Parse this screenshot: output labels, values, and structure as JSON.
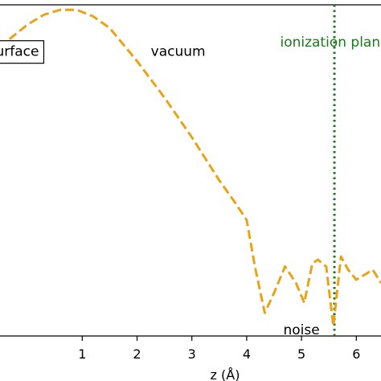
{
  "chart_data": {
    "type": "line",
    "xlabel": "z (Å)",
    "ylabel": "",
    "title": "",
    "xlim": [
      -0.5,
      6.45
    ],
    "ylim": [
      0.0,
      1.0
    ],
    "x_ticks": [
      1,
      2,
      3,
      4,
      5,
      6
    ],
    "x_tick_labels": [
      "1",
      "2",
      "3",
      "4",
      "5",
      "6"
    ],
    "grid": false,
    "series": [
      {
        "style": "dashed",
        "color": "#e8a317",
        "x": [
          -0.5,
          -0.3,
          0.0,
          0.3,
          0.6,
          0.9,
          1.2,
          1.5,
          2.0,
          2.5,
          3.0,
          3.5,
          3.8,
          4.0,
          4.15,
          4.33,
          4.5,
          4.7,
          4.9,
          5.05,
          5.2,
          5.3,
          5.45,
          5.58,
          5.72,
          5.85,
          6.0,
          6.3,
          6.45
        ],
        "y": [
          0.87,
          0.9,
          0.94,
          0.97,
          0.985,
          0.985,
          0.965,
          0.93,
          0.83,
          0.72,
          0.6,
          0.47,
          0.4,
          0.35,
          0.21,
          0.07,
          0.13,
          0.21,
          0.16,
          0.1,
          0.22,
          0.23,
          0.21,
          0.03,
          0.24,
          0.2,
          0.17,
          0.2,
          0.16
        ]
      }
    ],
    "vline": {
      "x": 5.6,
      "color": "#1a7a1a",
      "style": "dotted",
      "label": "ionization plane"
    },
    "annotations": [
      {
        "text": "surface",
        "x": -0.25,
        "y": 0.86,
        "boxed": true
      },
      {
        "text": "vacuum",
        "x": 2.75,
        "y": 0.86,
        "boxed": false
      },
      {
        "text": "noise",
        "x": 5.0,
        "y": 0.02,
        "boxed": false
      }
    ]
  }
}
